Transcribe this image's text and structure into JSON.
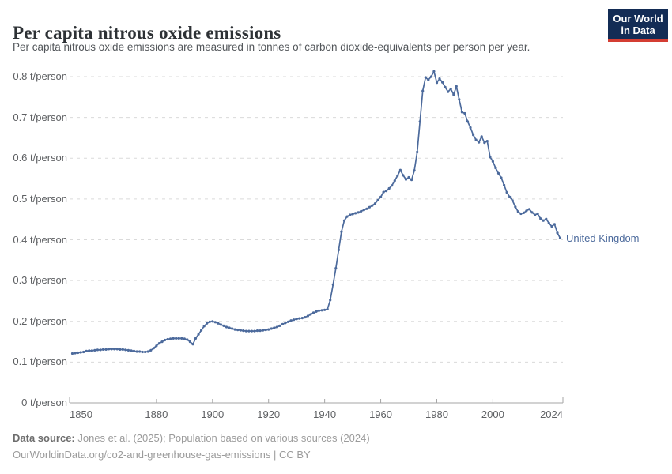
{
  "header": {
    "title": "Per capita nitrous oxide emissions",
    "subtitle": "Per capita nitrous oxide emissions are measured in tonnes of carbon dioxide-equivalents per person per year.",
    "logo": {
      "line1": "Our World",
      "line2": "in Data",
      "bg_color": "#132c55",
      "bar_color": "#d43d33"
    }
  },
  "chart_data": {
    "type": "line",
    "title": "Per capita nitrous oxide emissions",
    "xlabel": "",
    "ylabel": "t/person",
    "xlim": [
      1850,
      2024
    ],
    "ylim": [
      0,
      0.85
    ],
    "grid": "horizontal-dashed",
    "legend_position": "end-of-line-label",
    "x_ticks": [
      1850,
      1880,
      1900,
      1920,
      1940,
      1960,
      1980,
      2000,
      2024
    ],
    "x_tick_labels": [
      "1850",
      "1880",
      "1900",
      "1920",
      "1940",
      "1960",
      "1980",
      "2000",
      "2024"
    ],
    "y_ticks": [
      0,
      0.1,
      0.2,
      0.3,
      0.4,
      0.5,
      0.6,
      0.7,
      0.8
    ],
    "y_tick_labels": [
      "0 t/person",
      "0.1 t/person",
      "0.2 t/person",
      "0.3 t/person",
      "0.4 t/person",
      "0.5 t/person",
      "0.6 t/person",
      "0.7 t/person",
      "0.8 t/person"
    ],
    "series": [
      {
        "name": "United Kingdom",
        "color": "#4c6a9c",
        "x": [
          1850,
          1851,
          1852,
          1853,
          1854,
          1855,
          1856,
          1857,
          1858,
          1859,
          1860,
          1861,
          1862,
          1863,
          1864,
          1865,
          1866,
          1867,
          1868,
          1869,
          1870,
          1871,
          1872,
          1873,
          1874,
          1875,
          1876,
          1877,
          1878,
          1879,
          1880,
          1881,
          1882,
          1883,
          1884,
          1885,
          1886,
          1887,
          1888,
          1889,
          1890,
          1891,
          1892,
          1893,
          1894,
          1895,
          1896,
          1897,
          1898,
          1899,
          1900,
          1901,
          1902,
          1903,
          1904,
          1905,
          1906,
          1907,
          1908,
          1909,
          1910,
          1911,
          1912,
          1913,
          1914,
          1915,
          1916,
          1917,
          1918,
          1919,
          1920,
          1921,
          1922,
          1923,
          1924,
          1925,
          1926,
          1927,
          1928,
          1929,
          1930,
          1931,
          1932,
          1933,
          1934,
          1935,
          1936,
          1937,
          1938,
          1939,
          1940,
          1941,
          1942,
          1943,
          1944,
          1945,
          1946,
          1947,
          1948,
          1949,
          1950,
          1951,
          1952,
          1953,
          1954,
          1955,
          1956,
          1957,
          1958,
          1959,
          1960,
          1961,
          1962,
          1963,
          1964,
          1965,
          1966,
          1967,
          1968,
          1969,
          1970,
          1971,
          1972,
          1973,
          1974,
          1975,
          1976,
          1977,
          1978,
          1979,
          1980,
          1981,
          1982,
          1983,
          1984,
          1985,
          1986,
          1987,
          1988,
          1989,
          1990,
          1991,
          1992,
          1993,
          1994,
          1995,
          1996,
          1997,
          1998,
          1999,
          2000,
          2001,
          2002,
          2003,
          2004,
          2005,
          2006,
          2007,
          2008,
          2009,
          2010,
          2011,
          2012,
          2013,
          2014,
          2015,
          2016,
          2017,
          2018,
          2019,
          2020,
          2021,
          2022,
          2023,
          2024
        ],
        "values": [
          0.121,
          0.122,
          0.123,
          0.124,
          0.125,
          0.127,
          0.128,
          0.128,
          0.129,
          0.13,
          0.13,
          0.131,
          0.131,
          0.132,
          0.132,
          0.132,
          0.132,
          0.131,
          0.131,
          0.13,
          0.129,
          0.128,
          0.127,
          0.126,
          0.126,
          0.125,
          0.125,
          0.126,
          0.129,
          0.134,
          0.14,
          0.146,
          0.15,
          0.154,
          0.156,
          0.157,
          0.158,
          0.158,
          0.158,
          0.158,
          0.157,
          0.155,
          0.15,
          0.144,
          0.158,
          0.168,
          0.178,
          0.188,
          0.195,
          0.199,
          0.2,
          0.198,
          0.195,
          0.192,
          0.189,
          0.186,
          0.184,
          0.182,
          0.18,
          0.179,
          0.178,
          0.177,
          0.176,
          0.176,
          0.176,
          0.176,
          0.177,
          0.177,
          0.178,
          0.179,
          0.18,
          0.182,
          0.184,
          0.186,
          0.189,
          0.193,
          0.196,
          0.199,
          0.202,
          0.204,
          0.206,
          0.207,
          0.208,
          0.21,
          0.213,
          0.217,
          0.221,
          0.224,
          0.226,
          0.227,
          0.228,
          0.23,
          0.252,
          0.29,
          0.33,
          0.375,
          0.42,
          0.447,
          0.457,
          0.461,
          0.463,
          0.465,
          0.467,
          0.47,
          0.473,
          0.476,
          0.48,
          0.484,
          0.489,
          0.497,
          0.505,
          0.517,
          0.52,
          0.526,
          0.533,
          0.545,
          0.557,
          0.571,
          0.558,
          0.548,
          0.553,
          0.547,
          0.57,
          0.615,
          0.69,
          0.765,
          0.798,
          0.792,
          0.8,
          0.813,
          0.785,
          0.795,
          0.786,
          0.774,
          0.763,
          0.77,
          0.756,
          0.776,
          0.744,
          0.713,
          0.71,
          0.69,
          0.675,
          0.657,
          0.645,
          0.639,
          0.653,
          0.638,
          0.642,
          0.603,
          0.592,
          0.576,
          0.563,
          0.552,
          0.534,
          0.516,
          0.505,
          0.496,
          0.481,
          0.469,
          0.464,
          0.466,
          0.471,
          0.475,
          0.467,
          0.461,
          0.464,
          0.452,
          0.447,
          0.451,
          0.441,
          0.433,
          0.438,
          0.417,
          0.404
        ]
      }
    ],
    "end_label": "United Kingdom"
  },
  "footer": {
    "source_label": "Data source:",
    "source_text": " Jones et al. (2025); Population based on various sources (2024)",
    "link_text": "OurWorldinData.org/co2-and-greenhouse-gas-emissions | CC BY"
  },
  "colors": {
    "line": "#4c6a9c",
    "gridline": "#dadada",
    "axis": "#a5a5a5",
    "tick_text": "#5e6063"
  }
}
